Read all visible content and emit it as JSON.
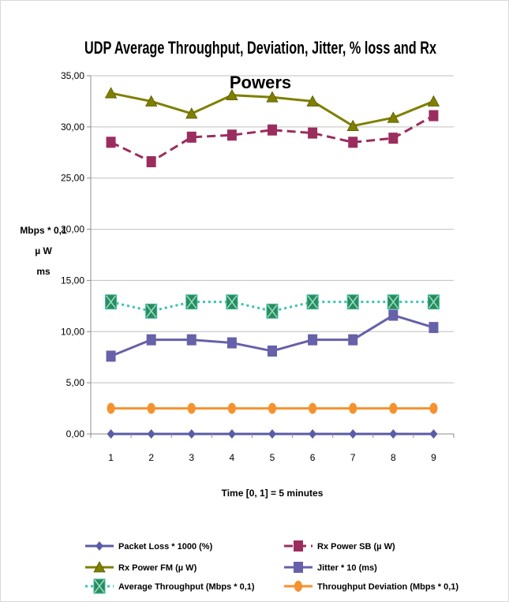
{
  "chart_data": {
    "type": "line",
    "title_line1": "UDP Average Throughput, Deviation, Jitter, % loss  and Rx",
    "title_line2": "Powers",
    "ylabel_lines": [
      "Mbps  * 0,1",
      "µ W",
      "ms"
    ],
    "xlabel": "Time [0, 1] = 5 minutes",
    "x": [
      1,
      2,
      3,
      4,
      5,
      6,
      7,
      8,
      9
    ],
    "ylim": [
      0,
      35
    ],
    "y_ticks": [
      "0,00",
      "5,00",
      "10,00",
      "15,00",
      "20,00",
      "25,00",
      "30,00",
      "35,00"
    ],
    "grid": true,
    "legend_placement": "bottom",
    "series": [
      {
        "key": "rxfm",
        "name": "Rx Power FM (µ W)",
        "color": "#7f7f00",
        "marker": "triangle",
        "dash": "solid",
        "values": [
          33.3,
          32.5,
          31.3,
          33.1,
          32.9,
          32.5,
          30.1,
          30.9,
          32.5
        ]
      },
      {
        "key": "rxsb",
        "name": "Rx Power SB (µ W)",
        "color": "#9b2d5e",
        "marker": "square",
        "dash": "dashed",
        "values": [
          28.5,
          26.6,
          29.0,
          29.2,
          29.7,
          29.4,
          28.5,
          28.9,
          31.1
        ]
      },
      {
        "key": "avg",
        "name": "Average Throughput (Mbps * 0,1)",
        "color": "#38c3b7",
        "marker": "xbox",
        "dash": "dotted",
        "values": [
          12.9,
          12.0,
          12.9,
          12.9,
          12.0,
          12.9,
          12.9,
          12.9,
          12.9
        ]
      },
      {
        "key": "jitter",
        "name": "Jitter * 10 (ms)",
        "color": "#6661a8",
        "marker": "square",
        "dash": "solid",
        "values": [
          7.6,
          9.2,
          9.2,
          8.9,
          8.1,
          9.2,
          9.2,
          11.6,
          10.4
        ]
      },
      {
        "key": "dev",
        "name": "Throughput Deviation (Mbps * 0,1)",
        "color": "#f5922d",
        "marker": "circle",
        "dash": "solid",
        "values": [
          2.5,
          2.5,
          2.5,
          2.5,
          2.5,
          2.5,
          2.5,
          2.5,
          2.5
        ]
      },
      {
        "key": "loss",
        "name": "Packet Loss * 1000 (%)",
        "color": "#5b5ba6",
        "marker": "diamond",
        "dash": "solid",
        "values": [
          0,
          0,
          0,
          0,
          0,
          0,
          0,
          0,
          0
        ]
      }
    ],
    "legend_order": [
      "loss",
      "rxsb",
      "rxfm",
      "jitter",
      "avg",
      "dev"
    ]
  }
}
